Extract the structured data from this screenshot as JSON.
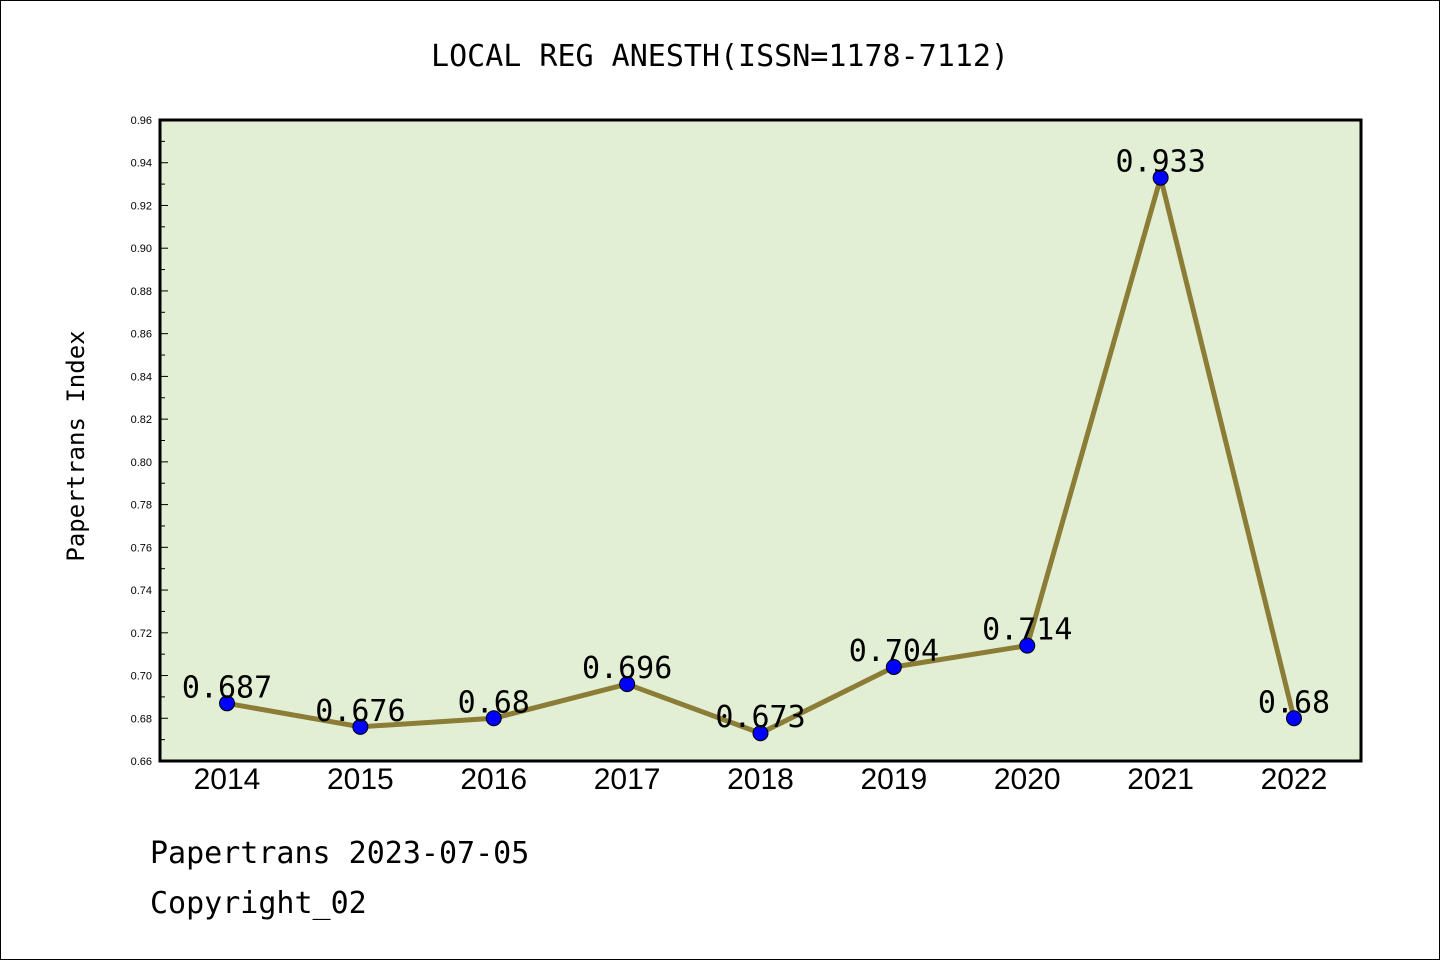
{
  "chart_data": {
    "type": "line",
    "title": "LOCAL REG ANESTH(ISSN=1178-7112)",
    "ylabel": "Papertrans Index",
    "xlabel": "",
    "x": [
      "2014",
      "2015",
      "2016",
      "2017",
      "2018",
      "2019",
      "2020",
      "2021",
      "2022"
    ],
    "series": [
      {
        "values": [
          0.687,
          0.676,
          0.68,
          0.696,
          0.673,
          0.704,
          0.714,
          0.933,
          0.68
        ],
        "labels": [
          "0.687",
          "0.676",
          "0.68",
          "0.696",
          "0.673",
          "0.704",
          "0.714",
          "0.933",
          "0.68"
        ]
      }
    ],
    "ylim": [
      0.66,
      0.96
    ],
    "yticks": [
      "0.66",
      "0.68",
      "0.70",
      "0.72",
      "0.74",
      "0.76",
      "0.78",
      "0.80",
      "0.82",
      "0.84",
      "0.86",
      "0.88",
      "0.90",
      "0.92",
      "0.94",
      "0.96"
    ],
    "grid": false,
    "colors": {
      "plot_bg": "#e2efd5",
      "line": "#8b7d36",
      "marker": "#0000ff"
    }
  },
  "footer": {
    "line1": "Papertrans 2023-07-05",
    "line2": "Copyright_02"
  }
}
